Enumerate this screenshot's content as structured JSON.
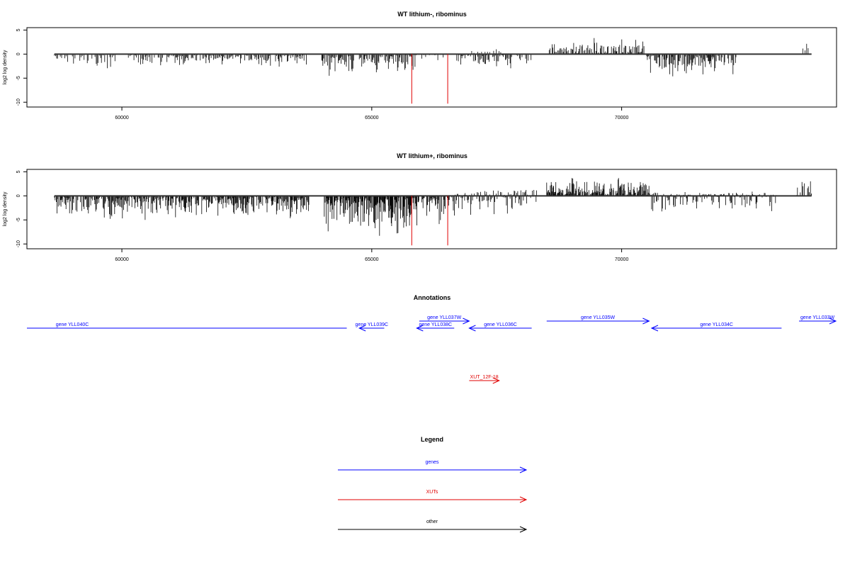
{
  "chart_data": [
    {
      "type": "bar",
      "title": "WT lithium-, ribominus",
      "xlabel": "",
      "ylabel": "log2 log density",
      "xlim": [
        58100,
        74300
      ],
      "ylim": [
        -11,
        5.5
      ],
      "xticks": [
        60000,
        65000,
        70000
      ],
      "xtick_labels": [
        "60000",
        "65000",
        "70000"
      ],
      "yticks": [
        5,
        0,
        -5,
        -10
      ],
      "ytick_labels": [
        "5",
        "0",
        "-5",
        "-10"
      ],
      "regions": [
        {
          "from": 58650,
          "to": 59900,
          "min": -3.5,
          "max": 0,
          "density": 0.6
        },
        {
          "from": 60100,
          "to": 63700,
          "min": -2.8,
          "max": 0,
          "density": 0.85
        },
        {
          "from": 64000,
          "to": 64650,
          "min": -5.5,
          "max": 0,
          "density": 1.0
        },
        {
          "from": 64750,
          "to": 65900,
          "min": -4.5,
          "max": 0,
          "density": 0.9
        },
        {
          "from": 66000,
          "to": 66500,
          "min": -2.0,
          "max": 0,
          "density": 0.25
        },
        {
          "from": 66700,
          "to": 67800,
          "min": -3.5,
          "max": 0,
          "density": 0.8
        },
        {
          "from": 67000,
          "to": 67600,
          "min": 0,
          "max": 1.5,
          "density": 0.4
        },
        {
          "from": 67900,
          "to": 68200,
          "min": -2.5,
          "max": 0,
          "density": 0.5
        },
        {
          "from": 68550,
          "to": 70450,
          "min": 0,
          "max": 3.5,
          "density": 0.9
        },
        {
          "from": 70500,
          "to": 72300,
          "min": -5.0,
          "max": 0,
          "density": 1.0
        },
        {
          "from": 73600,
          "to": 73750,
          "min": 0,
          "max": 3.5,
          "density": 0.5
        }
      ],
      "highlights": [
        {
          "x": 65800,
          "value": -10.3,
          "color": "#e00000"
        },
        {
          "x": 66520,
          "value": -10.3,
          "color": "#e00000"
        }
      ]
    },
    {
      "type": "bar",
      "title": "WT lithium+, ribominus",
      "xlabel": "",
      "ylabel": "log2 log density",
      "xlim": [
        58100,
        74300
      ],
      "ylim": [
        -11,
        5.5
      ],
      "xticks": [
        60000,
        65000,
        70000
      ],
      "xtick_labels": [
        "60000",
        "65000",
        "70000"
      ],
      "yticks": [
        5,
        0,
        -5,
        -10
      ],
      "ytick_labels": [
        "5",
        "0",
        "-5",
        "-10"
      ],
      "regions": [
        {
          "from": 58650,
          "to": 63750,
          "min": -5.5,
          "max": 0,
          "density": 1.2
        },
        {
          "from": 64050,
          "to": 65950,
          "min": -9.0,
          "max": 0,
          "density": 1.6
        },
        {
          "from": 66000,
          "to": 66550,
          "min": -6.0,
          "max": 0,
          "density": 1.3
        },
        {
          "from": 66600,
          "to": 68300,
          "min": -4.5,
          "max": 2.0,
          "density": 1.0
        },
        {
          "from": 68500,
          "to": 70600,
          "min": 0,
          "max": 4.0,
          "density": 1.4
        },
        {
          "from": 70600,
          "to": 73100,
          "min": -4.0,
          "max": 1.0,
          "density": 1.0
        },
        {
          "from": 73500,
          "to": 73800,
          "min": 0,
          "max": 3.8,
          "density": 0.6
        }
      ],
      "highlights": [
        {
          "x": 65800,
          "value": -10.3,
          "color": "#e00000"
        },
        {
          "x": 66520,
          "value": -10.3,
          "color": "#e00000"
        }
      ]
    }
  ],
  "annotations": {
    "title": "Annotations",
    "genes": [
      {
        "label": "gene YLL040C",
        "start": 58100,
        "end": 64500,
        "strand": "-",
        "color": "#0000ff",
        "row": 1
      },
      {
        "label": "gene YLL039C",
        "start": 64750,
        "end": 65250,
        "strand": "-",
        "color": "#0000ff",
        "row": 1
      },
      {
        "label": "gene YLL038C",
        "start": 65900,
        "end": 66650,
        "strand": "-",
        "color": "#0000ff",
        "row": 1
      },
      {
        "label": "gene YLL037W",
        "start": 65950,
        "end": 66950,
        "strand": "+",
        "color": "#0000ff",
        "row": 0
      },
      {
        "label": "gene YLL036C",
        "start": 66950,
        "end": 68200,
        "strand": "-",
        "color": "#0000ff",
        "row": 1
      },
      {
        "label": "gene YLL035W",
        "start": 68500,
        "end": 70550,
        "strand": "+",
        "color": "#0000ff",
        "row": 0
      },
      {
        "label": "gene YLL034C",
        "start": 70600,
        "end": 73200,
        "strand": "-",
        "color": "#0000ff",
        "row": 1
      },
      {
        "label": "gene YLL033W",
        "start": 73550,
        "end": 74300,
        "strand": "+",
        "color": "#0000ff",
        "row": 0
      }
    ],
    "xuts": [
      {
        "label": "XUT_12F-18",
        "start": 66950,
        "end": 67550,
        "strand": "+",
        "color": "#e00000"
      }
    ]
  },
  "legend": {
    "title": "Legend",
    "items": [
      {
        "label": "genes",
        "color": "#0000ff"
      },
      {
        "label": "XUTs",
        "color": "#e00000"
      },
      {
        "label": "other",
        "color": "#000000"
      }
    ]
  }
}
